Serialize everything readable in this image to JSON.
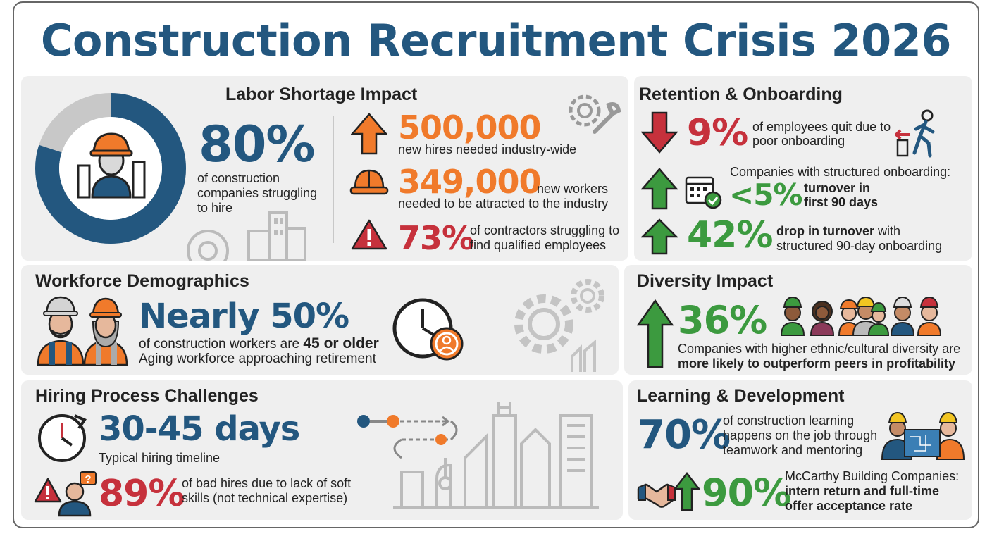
{
  "title": "Construction Recruitment Crisis 2026",
  "colors": {
    "blue": "#23577f",
    "orange": "#f07a2b",
    "red": "#c6313c",
    "green": "#3c9a3f",
    "panel": "#efefef"
  },
  "labor": {
    "title": "Labor Shortage Impact",
    "pct": "80%",
    "pct_desc": [
      "of construction",
      "companies struggling",
      "to hire"
    ],
    "donut_fraction": 0.8,
    "stats": [
      {
        "value": "500,000",
        "icon": "arrow-up-icon",
        "desc_after": "",
        "desc_lines": [
          "new hires needed industry-wide"
        ]
      },
      {
        "value": "349,000",
        "icon": "hard-hat-icon",
        "desc_after": "new workers",
        "desc_lines": [
          "needed to be attracted to the industry"
        ]
      },
      {
        "value": "73%",
        "icon": "warning-icon",
        "desc_lines": [
          "of contractors struggling to",
          "find qualified employees"
        ]
      }
    ]
  },
  "retention": {
    "title": "Retention & Onboarding",
    "quit_pct": "9%",
    "quit_desc": [
      "of employees quit due to",
      "poor onboarding"
    ],
    "structured_label": "Companies with structured onboarding:",
    "lt5_pct": "<5%",
    "lt5_desc": [
      "turnover in",
      "first 90 days"
    ],
    "drop_pct": "42%",
    "drop_bold": "drop in turnover",
    "drop_rest": "with",
    "drop_line2": "structured 90-day onboarding"
  },
  "demographics": {
    "title": "Workforce Demographics",
    "headline": "Nearly 50%",
    "line1_plain": "of construction workers are",
    "line1_bold": "45 or older",
    "line2": "Aging workforce approaching retirement"
  },
  "diversity": {
    "title": "Diversity Impact",
    "pct": "36%",
    "line1": "Companies with higher ethnic/cultural diversity are",
    "line2": "more likely to outperform peers in profitability"
  },
  "hiring": {
    "title": "Hiring Process Challenges",
    "days": "30-45 days",
    "days_desc": "Typical hiring timeline",
    "bad_pct": "89%",
    "bad_desc": [
      "of bad hires due to lack of soft",
      "skills (not technical expertise)"
    ]
  },
  "learning": {
    "title": "Learning & Development",
    "pct": "70%",
    "pct_desc": [
      "of construction learning",
      "happens on the job through",
      "teamwork and mentoring"
    ],
    "intern_pct": "90%",
    "intern_company": "McCarthy Building Companies:",
    "intern_desc": [
      "intern return and full-time",
      "offer acceptance rate"
    ]
  }
}
